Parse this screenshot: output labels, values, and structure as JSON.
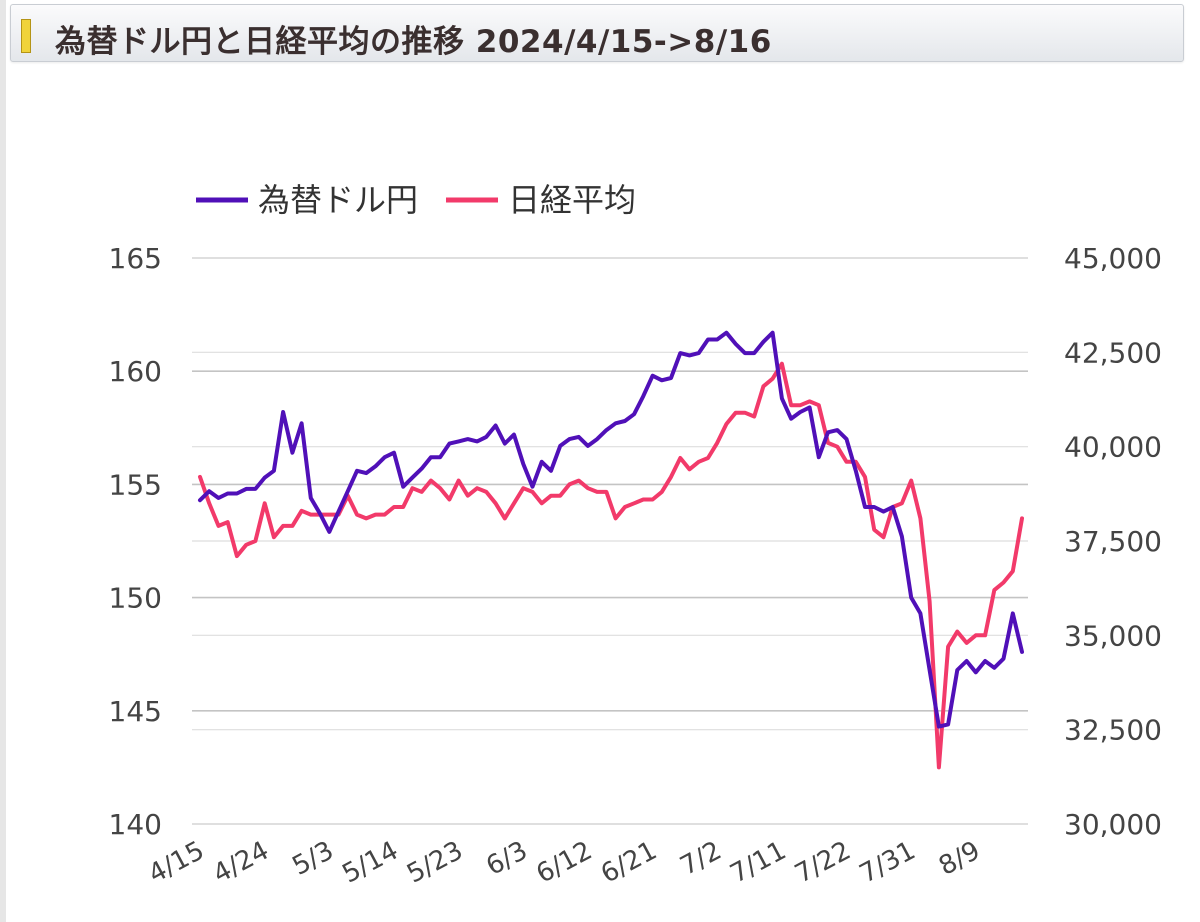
{
  "header": {
    "title": "為替ドル円と日経平均の推移 2024/4/15->8/16"
  },
  "chart_data": {
    "type": "line",
    "title": "為替ドル円と日経平均の推移 2024/4/15->8/16",
    "legend": {
      "placement": "top-left"
    },
    "grid": true,
    "colors": {
      "usdjpy": "#5010b8",
      "nikkei": "#f23a6a"
    },
    "x_ticks": [
      "4/15",
      "4/24",
      "5/3",
      "5/14",
      "5/23",
      "6/3",
      "6/12",
      "6/21",
      "7/2",
      "7/11",
      "7/22",
      "7/31",
      "8/9"
    ],
    "x_tick_indices": [
      0,
      7,
      14,
      21,
      28,
      35,
      42,
      49,
      56,
      63,
      70,
      77,
      84
    ],
    "y_left": {
      "min": 140,
      "max": 165,
      "ticks": [
        "140",
        "145",
        "150",
        "155",
        "160",
        "165"
      ]
    },
    "y_right": {
      "min": 30000,
      "max": 45000,
      "ticks": [
        "30,000",
        "32,500",
        "35,000",
        "37,500",
        "40,000",
        "42,500",
        "45,000"
      ]
    },
    "series": [
      {
        "name": "為替ドル円",
        "axis": "left",
        "values": [
          154.3,
          154.7,
          154.4,
          154.6,
          154.6,
          154.8,
          154.8,
          155.3,
          155.6,
          158.2,
          156.4,
          157.7,
          154.4,
          153.7,
          152.9,
          153.8,
          154.7,
          155.6,
          155.5,
          155.8,
          156.2,
          156.4,
          154.9,
          155.3,
          155.7,
          156.2,
          156.2,
          156.8,
          156.9,
          157.0,
          156.9,
          157.1,
          157.6,
          156.8,
          157.2,
          155.9,
          154.9,
          156.0,
          155.6,
          156.7,
          157.0,
          157.1,
          156.7,
          157.0,
          157.4,
          157.7,
          157.8,
          158.1,
          158.9,
          159.8,
          159.6,
          159.7,
          160.8,
          160.7,
          160.8,
          161.4,
          161.4,
          161.7,
          161.2,
          160.8,
          160.8,
          161.3,
          161.7,
          158.8,
          157.9,
          158.2,
          158.4,
          156.2,
          157.3,
          157.4,
          157.0,
          155.6,
          154.0,
          154.0,
          153.8,
          154.0,
          152.7,
          150.0,
          149.3,
          146.8,
          144.3,
          144.4,
          146.8,
          147.2,
          146.7,
          147.2,
          146.9,
          147.3,
          149.3,
          147.6
        ]
      },
      {
        "name": "日経平均",
        "axis": "right",
        "values": [
          39200,
          38500,
          37900,
          38000,
          37100,
          37400,
          37500,
          38500,
          37600,
          37900,
          37900,
          38300,
          38200,
          38200,
          38200,
          38200,
          38700,
          38200,
          38100,
          38200,
          38200,
          38400,
          38400,
          38900,
          38800,
          39100,
          38900,
          38600,
          39100,
          38700,
          38900,
          38800,
          38500,
          38100,
          38500,
          38900,
          38800,
          38500,
          38700,
          38700,
          39000,
          39100,
          38900,
          38800,
          38800,
          38100,
          38400,
          38500,
          38600,
          38600,
          38800,
          39200,
          39700,
          39400,
          39600,
          39700,
          40100,
          40600,
          40900,
          40900,
          40800,
          41600,
          41800,
          42200,
          41100,
          41100,
          41200,
          41100,
          40100,
          40000,
          39600,
          39600,
          39200,
          37800,
          37600,
          38400,
          38500,
          39100,
          38100,
          35900,
          31500,
          34700,
          35100,
          34800,
          35000,
          35000,
          36200,
          36400,
          36700,
          38100
        ]
      }
    ]
  }
}
